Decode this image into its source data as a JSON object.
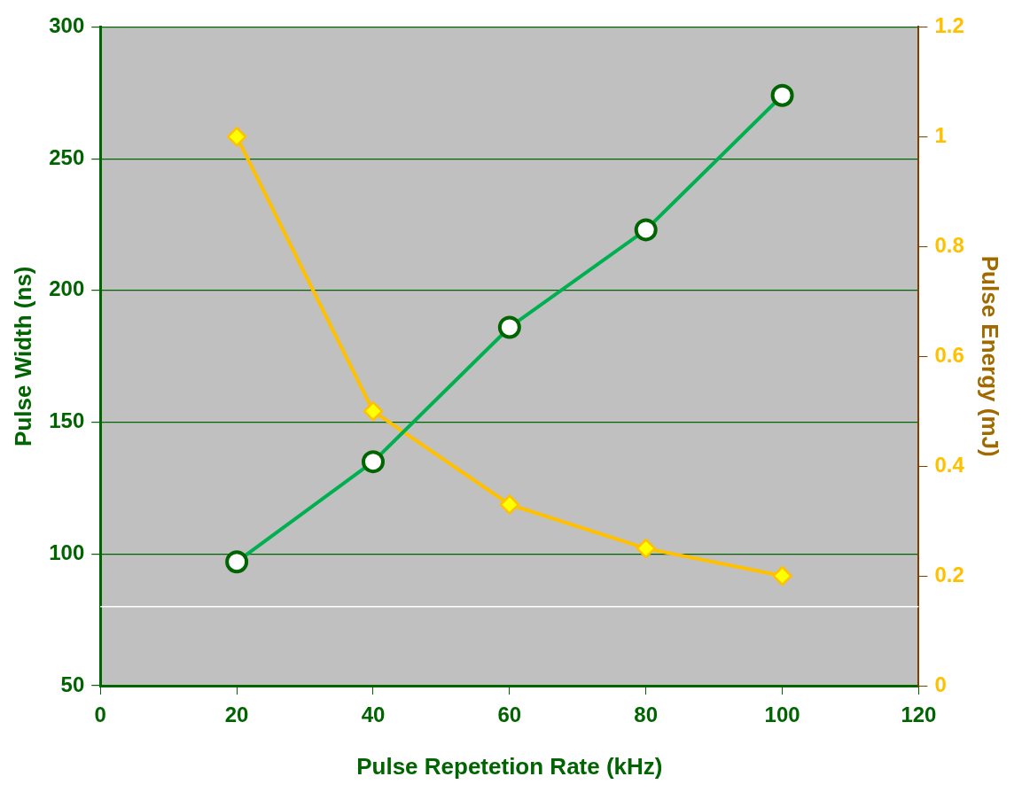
{
  "chart_data": {
    "type": "line",
    "xlabel": "Pulse Repetetion Rate (kHz)",
    "ylabel": "Pulse Width (ns)",
    "y2label": "Pulse Energy (mJ)",
    "x": [
      20,
      40,
      60,
      80,
      100
    ],
    "series": [
      {
        "color": "#00b050",
        "values": [
          97,
          135,
          186,
          223,
          274
        ],
        "marker": "circle"
      },
      {
        "color": "#ffc000",
        "values": [
          1.0,
          0.5,
          0.33,
          0.25,
          0.2
        ],
        "marker": "diamond",
        "axis": "y2"
      }
    ],
    "xlim": [
      0,
      120
    ],
    "xticks": [
      0,
      20,
      40,
      60,
      80,
      100,
      120
    ],
    "ylim": [
      50,
      300
    ],
    "yticks": [
      50,
      100,
      150,
      200,
      250,
      300
    ],
    "y2lim": [
      0,
      1.2
    ],
    "y2ticks": [
      0,
      0.2,
      0.4,
      0.6,
      0.8,
      1,
      1.2
    ],
    "ref_lines": [
      {
        "axis": "y",
        "value": 80,
        "color": "#ffffff"
      }
    ],
    "grid": "y",
    "legend": false
  }
}
